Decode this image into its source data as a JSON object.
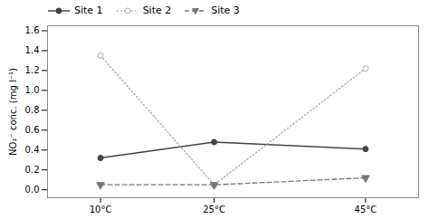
{
  "chart_data": {
    "type": "line",
    "x": [
      10,
      25,
      45
    ],
    "series": [
      {
        "name": "Site 1",
        "color": "#444444",
        "values": [
          0.32,
          0.48,
          0.41
        ],
        "marker": "circle",
        "line_style": "solid"
      },
      {
        "name": "Site 2",
        "color": "#aaaaaa",
        "values": [
          1.35,
          0.05,
          1.22
        ],
        "marker": "open_circle",
        "line_style": "dotted"
      },
      {
        "name": "Site 3",
        "color": "#777777",
        "values": [
          0.05,
          0.05,
          0.12
        ],
        "marker": "triangle_down",
        "line_style": "dashed"
      }
    ],
    "ylabel": "NO₂⁻ conc. (mg l⁻¹)",
    "xlim": [
      3,
      52
    ],
    "xticks": [
      {
        "value": 10,
        "label": "10°C"
      },
      {
        "value": 25,
        "label": "25°C"
      },
      {
        "value": 45,
        "label": "45°C"
      }
    ],
    "ylim": [
      -0.08,
      1.65
    ],
    "yticks": [
      {
        "value": 0,
        "label": "0.0"
      },
      0.2,
      0.4,
      0.6,
      0.8,
      {
        "value": 1,
        "label": "1.0"
      },
      1.2,
      1.4,
      1.6
    ],
    "grid": false
  }
}
